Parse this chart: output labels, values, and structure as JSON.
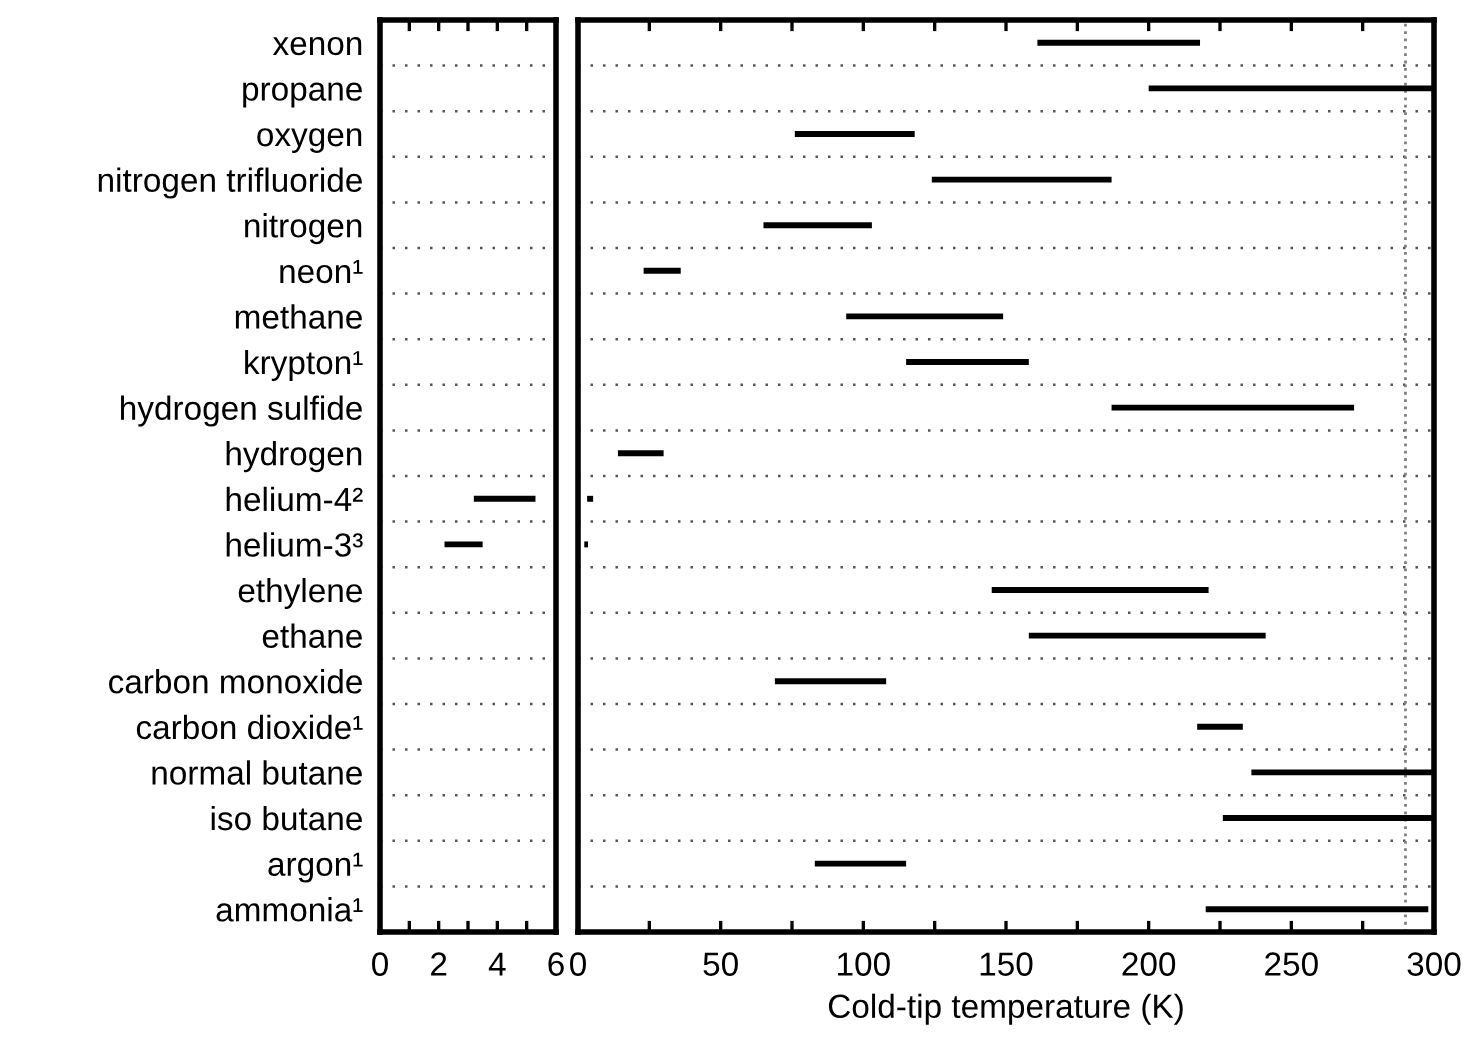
{
  "chart_data": [
    {
      "type": "bar",
      "orientation": "horizontal",
      "categories": [
        "xenon",
        "propane",
        "oxygen",
        "nitrogen trifluoride",
        "nitrogen",
        "neon¹",
        "methane",
        "krypton¹",
        "hydrogen sulfide",
        "hydrogen",
        "helium-4²",
        "helium-3³",
        "ethylene",
        "ethane",
        "carbon monoxide",
        "carbon dioxide¹",
        "normal butane",
        "iso butane",
        "argon¹",
        "ammonia¹"
      ],
      "base": [
        null,
        null,
        null,
        null,
        null,
        null,
        null,
        null,
        null,
        null,
        3.2,
        2.2,
        null,
        null,
        null,
        null,
        null,
        null,
        null,
        null
      ],
      "values": [
        null,
        null,
        null,
        null,
        null,
        null,
        null,
        null,
        null,
        null,
        2.1,
        1.3,
        null,
        null,
        null,
        null,
        null,
        null,
        null,
        null
      ],
      "color": "#000000",
      "xlim": [
        0,
        6
      ],
      "xticks": [
        0,
        {
          "value": 1,
          "label": null
        },
        2,
        {
          "value": 3,
          "label": null
        },
        4,
        {
          "value": 5,
          "label": null
        },
        6
      ],
      "grid": "y"
    },
    {
      "type": "bar",
      "orientation": "horizontal",
      "base": [
        161,
        200,
        76,
        124,
        65,
        23,
        94,
        115,
        187,
        14,
        3.2,
        2.2,
        145,
        158,
        69,
        217,
        236,
        226,
        83,
        220
      ],
      "values": [
        57,
        100,
        42,
        63,
        38,
        13,
        55,
        43,
        85,
        16,
        2.1,
        1.3,
        76,
        83,
        39,
        16,
        64,
        74,
        32,
        78
      ],
      "color": "#000000",
      "xlim": [
        0,
        300
      ],
      "xticks": [
        0,
        {
          "value": 25,
          "label": null
        },
        50,
        {
          "value": 75,
          "label": null
        },
        100,
        {
          "value": 125,
          "label": null
        },
        150,
        {
          "value": 175,
          "label": null
        },
        200,
        {
          "value": 225,
          "label": null
        },
        250,
        {
          "value": 275,
          "label": null
        },
        300
      ],
      "xlabel": "Cold-tip temperature (K)",
      "tick_labels": "x",
      "grid": "y",
      "ref_lines": [
        {
          "axis": "x",
          "value": 290,
          "color": "#808080",
          "line_style": "dotted"
        }
      ]
    }
  ]
}
